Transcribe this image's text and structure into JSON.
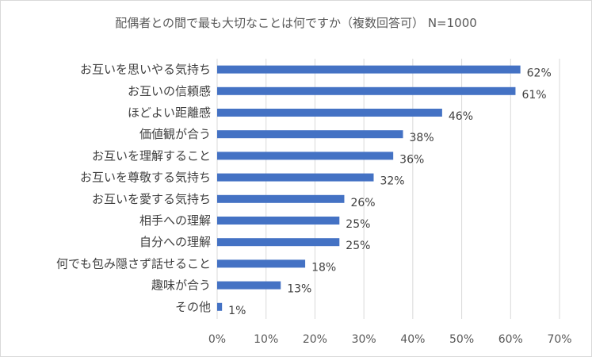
{
  "chart_data": {
    "type": "bar",
    "orientation": "horizontal",
    "title": "配偶者との間で最も大切なことは何ですか（複数回答可） N=1000",
    "categories": [
      "お互いを思いやる気持ち",
      "お互いの信頼感",
      "ほどよい距離感",
      "価値観が合う",
      "お互いを理解すること",
      "お互いを尊敬する気持ち",
      "お互いを愛する気持ち",
      "相手への理解",
      "自分への理解",
      "何でも包み隠さず話せること",
      "趣味が合う",
      "その他"
    ],
    "values": [
      62,
      61,
      46,
      38,
      36,
      32,
      26,
      25,
      25,
      18,
      13,
      1
    ],
    "value_labels": [
      "62%",
      "61%",
      "46%",
      "38%",
      "36%",
      "32%",
      "26%",
      "25%",
      "25%",
      "18%",
      "13%",
      "1%"
    ],
    "xlim": [
      0,
      70
    ],
    "xticks": [
      0,
      10,
      20,
      30,
      40,
      50,
      60,
      70
    ],
    "xtick_labels": [
      "0%",
      "10%",
      "20%",
      "30%",
      "40%",
      "50%",
      "60%",
      "70%"
    ],
    "grid": "vertical",
    "bar_color": "#4472c4",
    "grid_color": "#d9d9d9"
  }
}
